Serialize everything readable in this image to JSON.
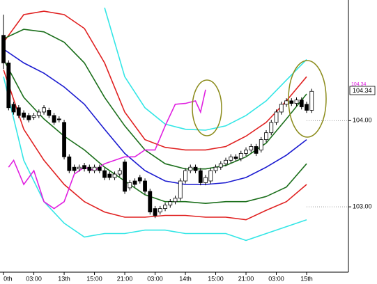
{
  "chart_data": {
    "type": "candlestick",
    "xlim": [
      -0.7,
      68
    ],
    "ylim": [
      102.25,
      105.4
    ],
    "xticks": [
      {
        "value": 0,
        "label": "0th"
      },
      {
        "value": 6,
        "label": "03:00"
      },
      {
        "value": 12,
        "label": "13th"
      },
      {
        "value": 18,
        "label": "15:00"
      },
      {
        "value": 24,
        "label": "21:00"
      },
      {
        "value": 30,
        "label": "03:00"
      },
      {
        "value": 36,
        "label": "14th"
      },
      {
        "value": 42,
        "label": "15:00"
      },
      {
        "value": 48,
        "label": "21:00"
      },
      {
        "value": 54,
        "label": "03:00"
      },
      {
        "value": 60,
        "label": "15th"
      }
    ],
    "yticks": [
      {
        "value": 103,
        "label": "103.00"
      },
      {
        "value": 104,
        "label": "104.00"
      }
    ],
    "up_color": "#ffffff",
    "down_color": "#000000",
    "open": [
      104.99,
      104.67,
      104.19,
      104.15,
      104.09,
      104.06,
      104.04,
      104.06,
      104.1,
      104.12,
      104.06,
      104.02,
      103.98,
      103.58,
      103.46,
      103.44,
      103.48,
      103.46,
      103.42,
      103.46,
      103.42,
      103.38,
      103.34,
      103.38,
      103.52,
      103.22,
      103.3,
      103.34,
      103.3,
      103.18,
      102.98,
      102.94,
      102.98,
      103.02,
      103.06,
      103.1,
      103.3,
      103.42,
      103.46,
      103.42,
      103.28,
      103.3,
      103.42,
      103.46,
      103.5,
      103.54,
      103.58,
      103.56,
      103.62,
      103.66,
      103.7,
      103.66,
      103.78,
      103.86,
      103.98,
      104.1,
      104.19,
      104.23,
      104.2,
      104.24,
      104.19,
      104.12
    ],
    "high": [
      105.23,
      104.7,
      104.22,
      104.18,
      104.12,
      104.09,
      104.09,
      104.13,
      104.18,
      104.15,
      104.09,
      104.05,
      104.01,
      103.61,
      103.49,
      103.49,
      103.51,
      103.49,
      103.49,
      103.49,
      103.45,
      103.41,
      103.41,
      103.45,
      103.55,
      103.31,
      103.33,
      103.37,
      103.33,
      103.21,
      103.01,
      103.01,
      103.05,
      103.09,
      103.13,
      103.33,
      103.45,
      103.49,
      103.49,
      103.45,
      103.37,
      103.45,
      103.49,
      103.53,
      103.57,
      103.61,
      103.61,
      103.65,
      103.69,
      103.73,
      103.73,
      103.81,
      103.89,
      104.01,
      104.13,
      104.22,
      104.26,
      104.26,
      104.27,
      104.27,
      104.22,
      104.37
    ],
    "low": [
      104.6,
      104.12,
      104.07,
      104.03,
      104.01,
      103.98,
      104.01,
      104.03,
      104.07,
      104.03,
      103.95,
      103.98,
      103.55,
      103.39,
      103.39,
      103.41,
      103.41,
      103.39,
      103.39,
      103.39,
      103.31,
      103.31,
      103.31,
      103.35,
      103.15,
      103.19,
      103.23,
      103.27,
      103.15,
      102.91,
      102.87,
      102.91,
      102.95,
      102.99,
      103.03,
      103.07,
      103.27,
      103.39,
      103.39,
      103.25,
      103.25,
      103.27,
      103.39,
      103.43,
      103.47,
      103.51,
      103.53,
      103.53,
      103.59,
      103.63,
      103.59,
      103.63,
      103.75,
      103.83,
      103.95,
      104.07,
      104.16,
      104.17,
      104.17,
      104.13,
      104.09,
      104.09
    ],
    "close": [
      104.67,
      104.15,
      104.1,
      104.06,
      104.04,
      104.01,
      104.06,
      104.1,
      104.15,
      104.06,
      103.98,
      104.01,
      103.58,
      103.42,
      103.42,
      103.46,
      103.44,
      103.42,
      103.46,
      103.42,
      103.34,
      103.34,
      103.38,
      103.42,
      103.18,
      103.28,
      103.26,
      103.3,
      103.18,
      102.94,
      102.9,
      102.98,
      103.02,
      103.06,
      103.1,
      103.3,
      103.42,
      103.46,
      103.42,
      103.28,
      103.34,
      103.42,
      103.46,
      103.5,
      103.54,
      103.58,
      103.56,
      103.62,
      103.66,
      103.7,
      103.62,
      103.78,
      103.86,
      103.98,
      104.1,
      104.19,
      104.23,
      104.2,
      104.24,
      104.16,
      104.12,
      104.34
    ],
    "lines": [
      {
        "color": "#33e6e6",
        "x": [
          0,
          4,
          8,
          12,
          16,
          20,
          24,
          28,
          32,
          36,
          40,
          44,
          48,
          52,
          56,
          60
        ],
        "values": [
          null,
          null,
          null,
          null,
          null,
          105.31,
          104.51,
          104.15,
          103.96,
          103.9,
          103.89,
          103.94,
          104.06,
          104.23,
          104.47,
          104.71
        ]
      },
      {
        "color": "#e02020",
        "x": [
          0,
          4,
          8,
          12,
          16,
          20,
          24,
          28,
          32,
          36,
          40,
          44,
          48,
          52,
          56,
          60
        ],
        "values": [
          104.91,
          105.23,
          105.27,
          105.23,
          105.07,
          104.67,
          104.1,
          103.78,
          103.69,
          103.66,
          103.66,
          103.7,
          103.82,
          103.98,
          104.23,
          104.51
        ]
      },
      {
        "color": "#1a6e1a",
        "x": [
          0,
          4,
          8,
          12,
          16,
          20,
          24,
          28,
          32,
          36,
          40,
          44,
          48,
          52,
          56,
          60
        ],
        "values": [
          104.95,
          105.06,
          105.03,
          104.91,
          104.67,
          104.27,
          103.94,
          103.66,
          103.5,
          103.44,
          103.44,
          103.48,
          103.58,
          103.74,
          104.02,
          104.31
        ]
      },
      {
        "color": "#1a1ad0",
        "x": [
          0,
          4,
          8,
          12,
          16,
          20,
          24,
          28,
          32,
          36,
          40,
          44,
          48,
          52,
          56,
          60
        ],
        "values": [
          104.83,
          104.67,
          104.55,
          104.39,
          104.19,
          103.9,
          103.62,
          103.42,
          103.3,
          103.26,
          103.26,
          103.28,
          103.34,
          103.46,
          103.6,
          103.78
        ]
      },
      {
        "color": "#1a6e1a",
        "x": [
          0,
          4,
          8,
          12,
          16,
          20,
          24,
          28,
          32,
          36,
          40,
          44,
          48,
          52,
          56,
          60
        ],
        "values": [
          104.71,
          104.27,
          104.02,
          103.82,
          103.66,
          103.46,
          103.3,
          103.14,
          103.06,
          103.06,
          103.04,
          103.06,
          103.06,
          103.12,
          103.23,
          103.5
        ]
      },
      {
        "color": "#e02020",
        "x": [
          0,
          4,
          8,
          12,
          16,
          20,
          24,
          28,
          32,
          36,
          40,
          44,
          48,
          52,
          56,
          60
        ],
        "values": [
          104.59,
          103.9,
          103.54,
          103.26,
          103.06,
          102.94,
          102.88,
          102.88,
          102.9,
          102.9,
          102.88,
          102.88,
          102.85,
          102.96,
          103.06,
          103.26
        ]
      },
      {
        "color": "#33e6e6",
        "x": [
          0,
          4,
          8,
          12,
          16,
          20,
          24,
          28,
          32,
          36,
          40,
          44,
          48,
          52,
          56,
          60
        ],
        "values": [
          104.51,
          103.54,
          103.06,
          102.81,
          102.65,
          102.69,
          102.69,
          102.73,
          102.73,
          102.69,
          102.69,
          102.69,
          102.61,
          102.69,
          102.77,
          102.85
        ]
      },
      {
        "color": "#e020e0",
        "x": [
          1,
          2,
          4,
          6,
          8,
          10,
          12,
          14,
          16,
          18,
          20,
          22,
          24,
          26,
          28,
          30,
          32,
          34,
          36,
          38,
          39,
          40
        ],
        "values": [
          103.46,
          103.54,
          103.26,
          103.42,
          103.06,
          102.98,
          103.06,
          103.38,
          103.46,
          103.42,
          103.5,
          103.54,
          103.58,
          103.58,
          103.66,
          103.66,
          103.94,
          104.19,
          104.2,
          104.23,
          104.1,
          104.36
        ]
      }
    ],
    "last_price_label": "104.34",
    "indicator_label": "104.34"
  }
}
